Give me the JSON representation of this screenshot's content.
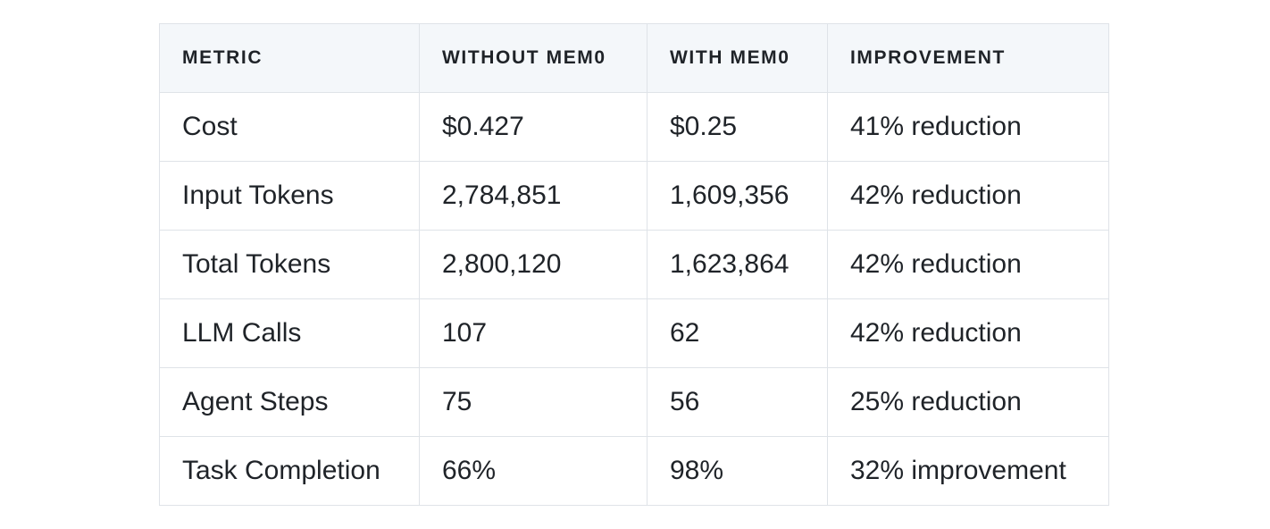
{
  "table": {
    "headers": [
      "METRIC",
      "WITHOUT MEM0",
      "WITH MEM0",
      "IMPROVEMENT"
    ],
    "rows": [
      [
        "Cost",
        "$0.427",
        "$0.25",
        "41% reduction"
      ],
      [
        "Input Tokens",
        "2,784,851",
        "1,609,356",
        "42% reduction"
      ],
      [
        "Total Tokens",
        "2,800,120",
        "1,623,864",
        "42% reduction"
      ],
      [
        "LLM Calls",
        "107",
        "62",
        "42% reduction"
      ],
      [
        "Agent Steps",
        "75",
        "56",
        "25% reduction"
      ],
      [
        "Task Completion",
        "66%",
        "98%",
        "32% improvement"
      ]
    ]
  },
  "colors": {
    "header_background": "#f4f7fa",
    "border": "#dfe3e8",
    "text": "#1f2328"
  }
}
